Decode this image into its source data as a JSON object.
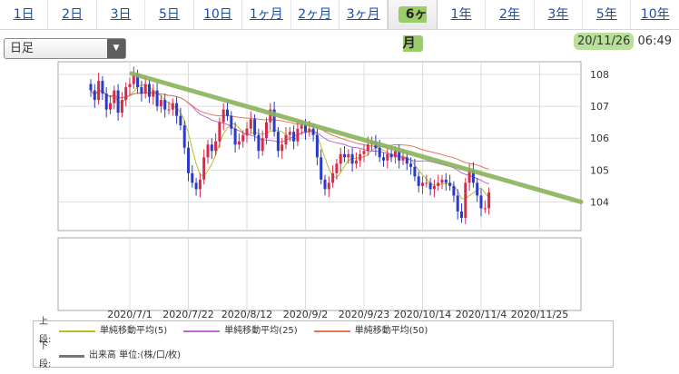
{
  "tabs": [
    "1日",
    "2日",
    "3日",
    "5日",
    "10日",
    "1ヶ月",
    "2ヶ月",
    "3ヶ月",
    "6ヶ月",
    "1年",
    "2年",
    "3年",
    "5年",
    "10年"
  ],
  "active_tab": 8,
  "select": {
    "value": "日足"
  },
  "datetime": {
    "date": "20/11/26",
    "time": "06:49"
  },
  "chart_data": {
    "type": "candlestick",
    "y_ticks": [
      "108",
      "107",
      "106",
      "105",
      "104"
    ],
    "ylim": [
      103.1,
      108.4
    ],
    "x_ticks": [
      "2020/7/1",
      "2020/7/22",
      "2020/8/12",
      "2020/9/2",
      "2020/9/23",
      "2020/10/14",
      "2020/11/4",
      "2020/11/25"
    ],
    "x_tick_index": [
      10,
      25,
      40,
      55,
      70,
      85,
      100,
      115
    ],
    "closes": [
      107.5,
      107.2,
      107.8,
      107.4,
      106.9,
      107.1,
      107.5,
      106.8,
      107.2,
      107.6,
      107.7,
      108.0,
      107.6,
      107.4,
      107.7,
      107.3,
      107.5,
      107.0,
      107.2,
      106.9,
      106.9,
      107.1,
      106.7,
      106.4,
      105.7,
      104.9,
      104.6,
      104.4,
      104.7,
      105.4,
      105.8,
      105.6,
      105.9,
      106.5,
      106.9,
      106.7,
      106.3,
      105.8,
      105.9,
      106.1,
      106.3,
      106.6,
      106.1,
      105.6,
      106.0,
      106.5,
      106.9,
      106.2,
      105.6,
      105.8,
      106.1,
      106.2,
      105.9,
      106.3,
      106.4,
      106.2,
      106.3,
      106.1,
      105.4,
      104.7,
      104.4,
      104.6,
      104.9,
      105.2,
      105.5,
      105.4,
      105.5,
      105.2,
      105.3,
      105.5,
      105.6,
      105.8,
      105.9,
      105.7,
      105.4,
      105.3,
      105.5,
      105.4,
      105.6,
      105.3,
      105.4,
      105.2,
      105.1,
      104.8,
      104.5,
      104.6,
      104.6,
      104.4,
      104.5,
      104.6,
      104.7,
      104.6,
      104.5,
      104.2,
      103.7,
      103.5,
      104.6,
      105.0,
      104.6,
      104.2,
      103.8,
      103.8,
      104.3
    ],
    "sma": [
      {
        "period": 5,
        "color": "#bcbc2a"
      },
      {
        "period": 25,
        "color": "#b86ad0"
      },
      {
        "period": 50,
        "color": "#e2785a"
      }
    ],
    "trend_line": {
      "from": [
        108.03,
        4
      ],
      "to": [
        104.0,
        125
      ],
      "color": "#8ab45a"
    },
    "up_color": "#d62b4a",
    "down_color": "#2a3bc8"
  },
  "legend": {
    "upper_label": "上段:",
    "lower_label": "下段:",
    "sma5": "単純移動平均(5)",
    "sma25": "単純移動平均(25)",
    "sma50": "単純移動平均(50)",
    "volume": "出来高 単位:(株/口/枚)"
  }
}
